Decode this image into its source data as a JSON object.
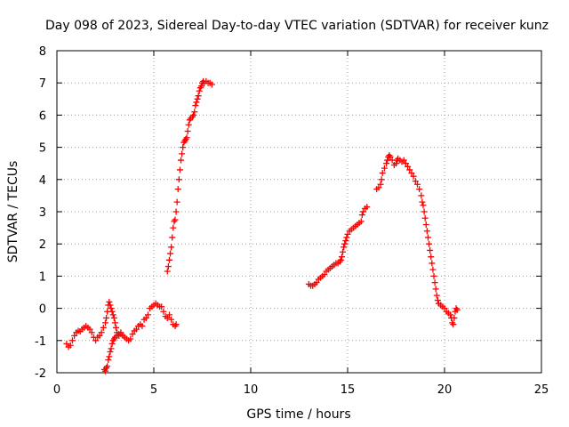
{
  "chart_data": {
    "type": "scatter",
    "title": "Day 098 of 2023, Sidereal Day-to-day VTEC variation (SDTVAR) for receiver kunz",
    "xlabel": "GPS time / hours",
    "ylabel": "SDTVAR / TECUs",
    "xlim": [
      0,
      25
    ],
    "ylim": [
      -2,
      8
    ],
    "xticks": [
      "0",
      "5",
      "10",
      "15",
      "20",
      "25"
    ],
    "yticks": [
      "-2",
      "-1",
      "0",
      "1",
      "2",
      "3",
      "4",
      "5",
      "6",
      "7",
      "8"
    ],
    "grid": true,
    "marker": "+",
    "color": "#ff0000",
    "series": [
      {
        "points": [
          [
            0.5,
            -1.1
          ],
          [
            0.6,
            -1.2
          ],
          [
            0.7,
            -1.15
          ],
          [
            0.8,
            -1.0
          ],
          [
            0.9,
            -0.85
          ],
          [
            1.0,
            -0.75
          ],
          [
            1.1,
            -0.7
          ],
          [
            1.2,
            -0.72
          ],
          [
            1.3,
            -0.65
          ],
          [
            1.4,
            -0.6
          ],
          [
            1.5,
            -0.55
          ],
          [
            1.6,
            -0.6
          ],
          [
            1.7,
            -0.65
          ],
          [
            1.8,
            -0.75
          ],
          [
            1.9,
            -0.9
          ],
          [
            2.0,
            -1.0
          ],
          [
            2.1,
            -0.9
          ],
          [
            2.2,
            -0.85
          ],
          [
            2.3,
            -0.75
          ],
          [
            2.4,
            -0.6
          ],
          [
            2.5,
            -0.45
          ],
          [
            2.55,
            -0.3
          ],
          [
            2.6,
            -0.1
          ],
          [
            2.65,
            0.1
          ],
          [
            2.7,
            0.2
          ],
          [
            2.75,
            0.1
          ],
          [
            2.8,
            0.0
          ],
          [
            2.85,
            -0.1
          ],
          [
            2.9,
            -0.2
          ],
          [
            2.95,
            -0.3
          ],
          [
            3.0,
            -0.45
          ],
          [
            3.05,
            -0.6
          ],
          [
            3.1,
            -0.75
          ],
          [
            3.2,
            -0.85
          ],
          [
            3.3,
            -0.8
          ],
          [
            3.4,
            -0.85
          ],
          [
            3.5,
            -0.9
          ],
          [
            3.6,
            -0.95
          ],
          [
            3.7,
            -1.0
          ],
          [
            3.8,
            -0.95
          ],
          [
            3.9,
            -0.8
          ],
          [
            4.0,
            -0.7
          ],
          [
            4.1,
            -0.65
          ],
          [
            4.2,
            -0.55
          ],
          [
            4.3,
            -0.5
          ],
          [
            4.4,
            -0.55
          ],
          [
            4.5,
            -0.35
          ],
          [
            4.6,
            -0.3
          ],
          [
            4.7,
            -0.2
          ],
          [
            4.8,
            0.0
          ],
          [
            4.9,
            0.05
          ],
          [
            5.0,
            0.1
          ],
          [
            5.1,
            0.15
          ],
          [
            5.2,
            0.1
          ],
          [
            5.3,
            0.05
          ],
          [
            5.4,
            0.05
          ],
          [
            5.5,
            -0.1
          ],
          [
            5.6,
            -0.25
          ],
          [
            5.7,
            -0.3
          ],
          [
            5.8,
            -0.2
          ],
          [
            5.9,
            -0.35
          ],
          [
            6.0,
            -0.5
          ],
          [
            6.1,
            -0.55
          ],
          [
            6.15,
            -0.5
          ],
          [
            2.45,
            -1.9
          ],
          [
            2.5,
            -1.95
          ],
          [
            2.55,
            -1.85
          ],
          [
            2.6,
            -1.8
          ],
          [
            2.65,
            -1.6
          ],
          [
            2.7,
            -1.5
          ],
          [
            2.75,
            -1.35
          ],
          [
            2.8,
            -1.25
          ],
          [
            2.85,
            -1.1
          ],
          [
            2.9,
            -1.0
          ],
          [
            2.95,
            -0.95
          ],
          [
            3.0,
            -0.9
          ],
          [
            3.1,
            -0.85
          ],
          [
            3.2,
            -0.8
          ],
          [
            3.3,
            -0.75
          ]
        ]
      },
      {
        "points": [
          [
            5.7,
            1.15
          ],
          [
            5.75,
            1.3
          ],
          [
            5.8,
            1.5
          ],
          [
            5.85,
            1.7
          ],
          [
            5.9,
            1.9
          ],
          [
            5.95,
            2.2
          ],
          [
            6.0,
            2.5
          ],
          [
            6.05,
            2.7
          ],
          [
            6.1,
            2.75
          ],
          [
            6.15,
            3.0
          ],
          [
            6.2,
            3.3
          ],
          [
            6.25,
            3.7
          ],
          [
            6.3,
            4.0
          ],
          [
            6.35,
            4.3
          ],
          [
            6.4,
            4.6
          ],
          [
            6.45,
            4.8
          ],
          [
            6.5,
            5.0
          ],
          [
            6.55,
            5.15
          ],
          [
            6.6,
            5.2
          ],
          [
            6.65,
            5.25
          ],
          [
            6.7,
            5.3
          ],
          [
            6.75,
            5.5
          ],
          [
            6.8,
            5.7
          ],
          [
            6.85,
            5.85
          ],
          [
            6.9,
            5.9
          ],
          [
            7.0,
            5.95
          ],
          [
            7.05,
            6.0
          ],
          [
            7.1,
            6.1
          ],
          [
            7.15,
            6.3
          ],
          [
            7.2,
            6.4
          ],
          [
            7.25,
            6.5
          ],
          [
            7.3,
            6.6
          ],
          [
            7.35,
            6.75
          ],
          [
            7.4,
            6.85
          ],
          [
            7.45,
            6.9
          ],
          [
            7.5,
            7.0
          ],
          [
            7.55,
            7.05
          ],
          [
            7.6,
            7.0
          ],
          [
            7.7,
            7.05
          ],
          [
            7.8,
            7.0
          ],
          [
            7.9,
            7.0
          ],
          [
            8.0,
            6.95
          ]
        ]
      },
      {
        "points": [
          [
            13.0,
            0.75
          ],
          [
            13.1,
            0.7
          ],
          [
            13.2,
            0.7
          ],
          [
            13.3,
            0.75
          ],
          [
            13.4,
            0.8
          ],
          [
            13.5,
            0.9
          ],
          [
            13.6,
            0.95
          ],
          [
            13.7,
            1.0
          ],
          [
            13.8,
            1.05
          ],
          [
            13.9,
            1.15
          ],
          [
            14.0,
            1.2
          ],
          [
            14.1,
            1.25
          ],
          [
            14.2,
            1.3
          ],
          [
            14.3,
            1.35
          ],
          [
            14.4,
            1.4
          ],
          [
            14.5,
            1.4
          ],
          [
            14.6,
            1.45
          ],
          [
            14.65,
            1.5
          ],
          [
            14.7,
            1.6
          ],
          [
            14.75,
            1.75
          ],
          [
            14.8,
            1.9
          ],
          [
            14.85,
            2.0
          ],
          [
            14.9,
            2.1
          ],
          [
            14.95,
            2.2
          ],
          [
            15.0,
            2.3
          ],
          [
            15.1,
            2.4
          ],
          [
            15.2,
            2.45
          ],
          [
            15.3,
            2.5
          ],
          [
            15.4,
            2.55
          ],
          [
            15.5,
            2.6
          ],
          [
            15.6,
            2.65
          ],
          [
            15.7,
            2.7
          ],
          [
            15.75,
            2.9
          ],
          [
            15.8,
            3.0
          ],
          [
            15.9,
            3.1
          ],
          [
            16.0,
            3.15
          ],
          [
            16.5,
            3.7
          ],
          [
            16.6,
            3.75
          ],
          [
            16.7,
            3.85
          ],
          [
            16.75,
            4.0
          ],
          [
            16.8,
            4.2
          ],
          [
            16.9,
            4.35
          ],
          [
            17.0,
            4.5
          ],
          [
            17.05,
            4.6
          ],
          [
            17.1,
            4.7
          ],
          [
            17.15,
            4.75
          ],
          [
            17.2,
            4.7
          ],
          [
            17.3,
            4.6
          ],
          [
            17.4,
            4.45
          ],
          [
            17.5,
            4.5
          ],
          [
            17.55,
            4.6
          ],
          [
            17.6,
            4.65
          ],
          [
            17.7,
            4.6
          ],
          [
            17.8,
            4.55
          ],
          [
            17.9,
            4.6
          ],
          [
            18.0,
            4.5
          ],
          [
            18.1,
            4.4
          ],
          [
            18.2,
            4.3
          ],
          [
            18.3,
            4.2
          ],
          [
            18.4,
            4.1
          ],
          [
            18.5,
            3.95
          ],
          [
            18.6,
            3.85
          ],
          [
            18.7,
            3.7
          ],
          [
            18.8,
            3.5
          ],
          [
            18.85,
            3.3
          ],
          [
            18.9,
            3.2
          ],
          [
            18.95,
            3.0
          ],
          [
            19.0,
            2.8
          ],
          [
            19.05,
            2.6
          ],
          [
            19.1,
            2.4
          ],
          [
            19.15,
            2.2
          ],
          [
            19.2,
            2.0
          ],
          [
            19.25,
            1.8
          ],
          [
            19.3,
            1.6
          ],
          [
            19.35,
            1.4
          ],
          [
            19.4,
            1.2
          ],
          [
            19.45,
            1.0
          ],
          [
            19.5,
            0.8
          ],
          [
            19.55,
            0.6
          ],
          [
            19.6,
            0.4
          ],
          [
            19.65,
            0.25
          ],
          [
            19.7,
            0.15
          ],
          [
            19.8,
            0.1
          ],
          [
            19.9,
            0.05
          ],
          [
            20.0,
            0.0
          ],
          [
            20.1,
            -0.1
          ],
          [
            20.2,
            -0.15
          ],
          [
            20.3,
            -0.2
          ],
          [
            20.35,
            -0.3
          ],
          [
            20.4,
            -0.45
          ],
          [
            20.45,
            -0.5
          ],
          [
            20.5,
            -0.3
          ],
          [
            20.55,
            -0.1
          ],
          [
            20.6,
            0.0
          ],
          [
            20.65,
            -0.05
          ]
        ]
      }
    ]
  }
}
